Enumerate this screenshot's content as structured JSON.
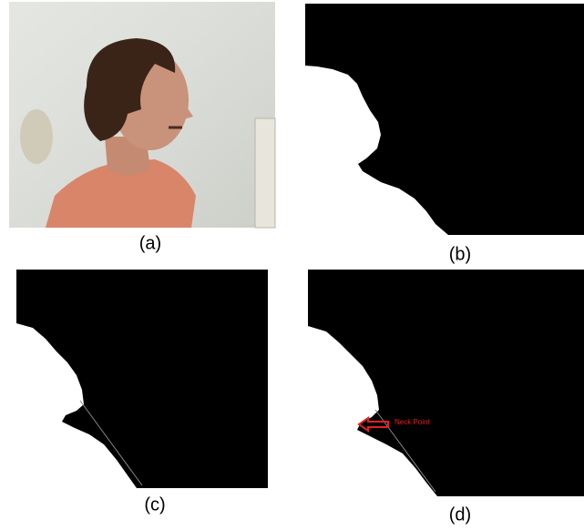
{
  "panels": [
    {
      "label": "(a)"
    },
    {
      "label": "(b)"
    },
    {
      "label": "(c)"
    },
    {
      "label": "(d)"
    }
  ],
  "annotation": "Neck Point"
}
